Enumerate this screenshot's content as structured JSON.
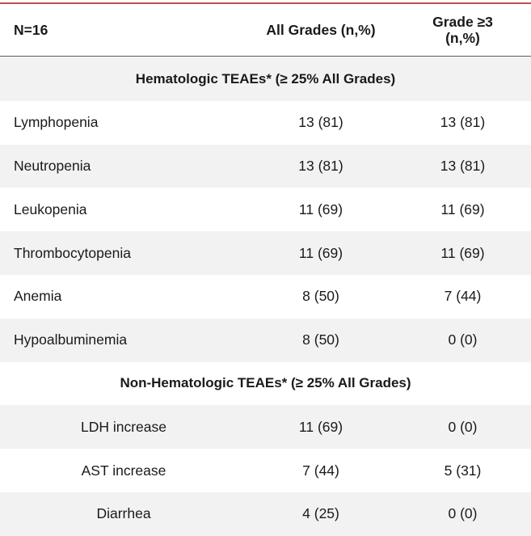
{
  "header": {
    "label": "N=16",
    "all_grades": "All Grades (n,%)",
    "grade3": "Grade ≥3\n(n,%)"
  },
  "sections": [
    {
      "title": "Hematologic TEAEs* (≥ 25% All Grades)",
      "rows": [
        [
          "Lymphopenia",
          "13 (81)",
          "13 (81)"
        ],
        [
          "Neutropenia",
          "13 (81)",
          "13 (81)"
        ],
        [
          "Leukopenia",
          "11 (69)",
          "11 (69)"
        ],
        [
          "Thrombocytopenia",
          "11 (69)",
          "11 (69)"
        ],
        [
          "Anemia",
          "8 (50)",
          "7 (44)"
        ],
        [
          "Hypoalbuminemia",
          "8 (50)",
          "0 (0)"
        ]
      ]
    },
    {
      "title": "Non-Hematologic TEAEs* (≥ 25% All Grades)",
      "rows": [
        [
          "LDH increase",
          "11 (69)",
          "0 (0)"
        ],
        [
          "AST increase",
          "7 (44)",
          "5 (31)"
        ],
        [
          "Diarrhea",
          "4 (25)",
          "0 (0)"
        ]
      ]
    }
  ]
}
